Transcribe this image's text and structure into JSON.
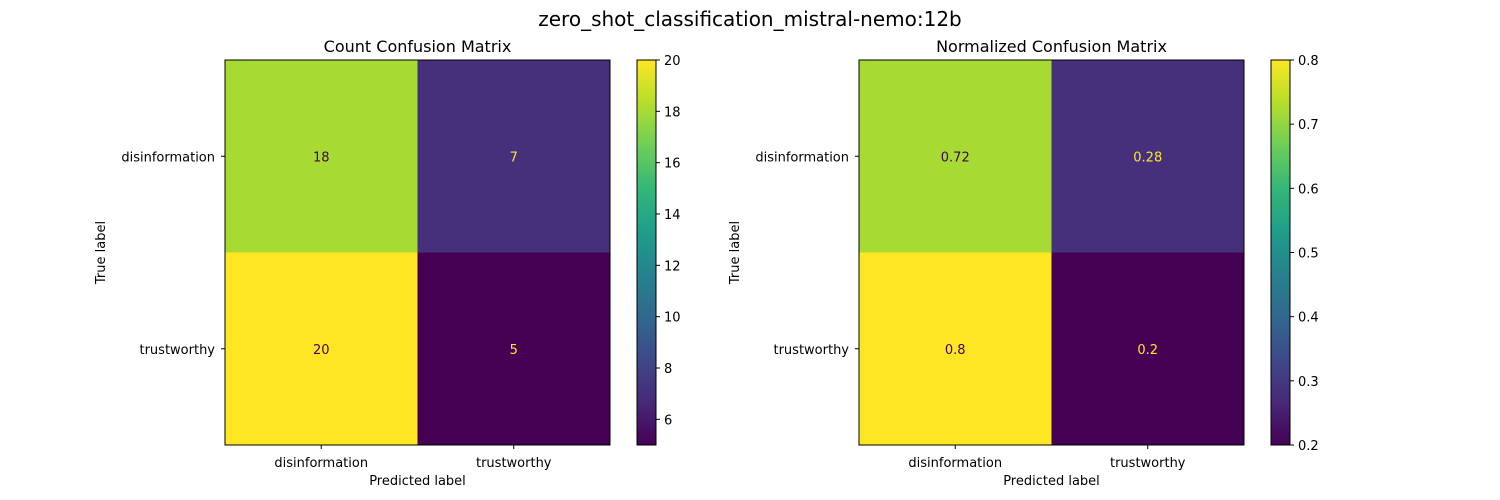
{
  "figure": {
    "suptitle": "zero_shot_classification_mistral-nemo:12b"
  },
  "colors": {
    "viridis": [
      "#440154",
      "#482878",
      "#3e4989",
      "#31688e",
      "#26828e",
      "#1f9e89",
      "#35b779",
      "#6ece58",
      "#b5de2b",
      "#fde725"
    ],
    "text_on_dark": "#fde725",
    "text_on_light": "#440154"
  },
  "chart_data": [
    {
      "type": "heatmap",
      "title": "Count Confusion Matrix",
      "xlabel": "Predicted label",
      "ylabel": "True label",
      "x_categories": [
        "disinformation",
        "trustworthy"
      ],
      "y_categories": [
        "disinformation",
        "trustworthy"
      ],
      "values": [
        [
          18,
          7
        ],
        [
          20,
          5
        ]
      ],
      "value_labels": [
        [
          "18",
          "7"
        ],
        [
          "20",
          "5"
        ]
      ],
      "colorbar": {
        "range": [
          5,
          20
        ],
        "ticks": [
          6,
          8,
          10,
          12,
          14,
          16,
          18,
          20
        ],
        "tick_labels": [
          "6",
          "8",
          "10",
          "12",
          "14",
          "16",
          "18",
          "20"
        ]
      }
    },
    {
      "type": "heatmap",
      "title": "Normalized Confusion Matrix",
      "xlabel": "Predicted label",
      "ylabel": "True label",
      "x_categories": [
        "disinformation",
        "trustworthy"
      ],
      "y_categories": [
        "disinformation",
        "trustworthy"
      ],
      "values": [
        [
          0.72,
          0.28
        ],
        [
          0.8,
          0.2
        ]
      ],
      "value_labels": [
        [
          "0.72",
          "0.28"
        ],
        [
          "0.8",
          "0.2"
        ]
      ],
      "colorbar": {
        "range": [
          0.2,
          0.8
        ],
        "ticks": [
          0.2,
          0.3,
          0.4,
          0.5,
          0.6,
          0.7,
          0.8
        ],
        "tick_labels": [
          "0.2",
          "0.3",
          "0.4",
          "0.5",
          "0.6",
          "0.7",
          "0.8"
        ]
      }
    }
  ]
}
